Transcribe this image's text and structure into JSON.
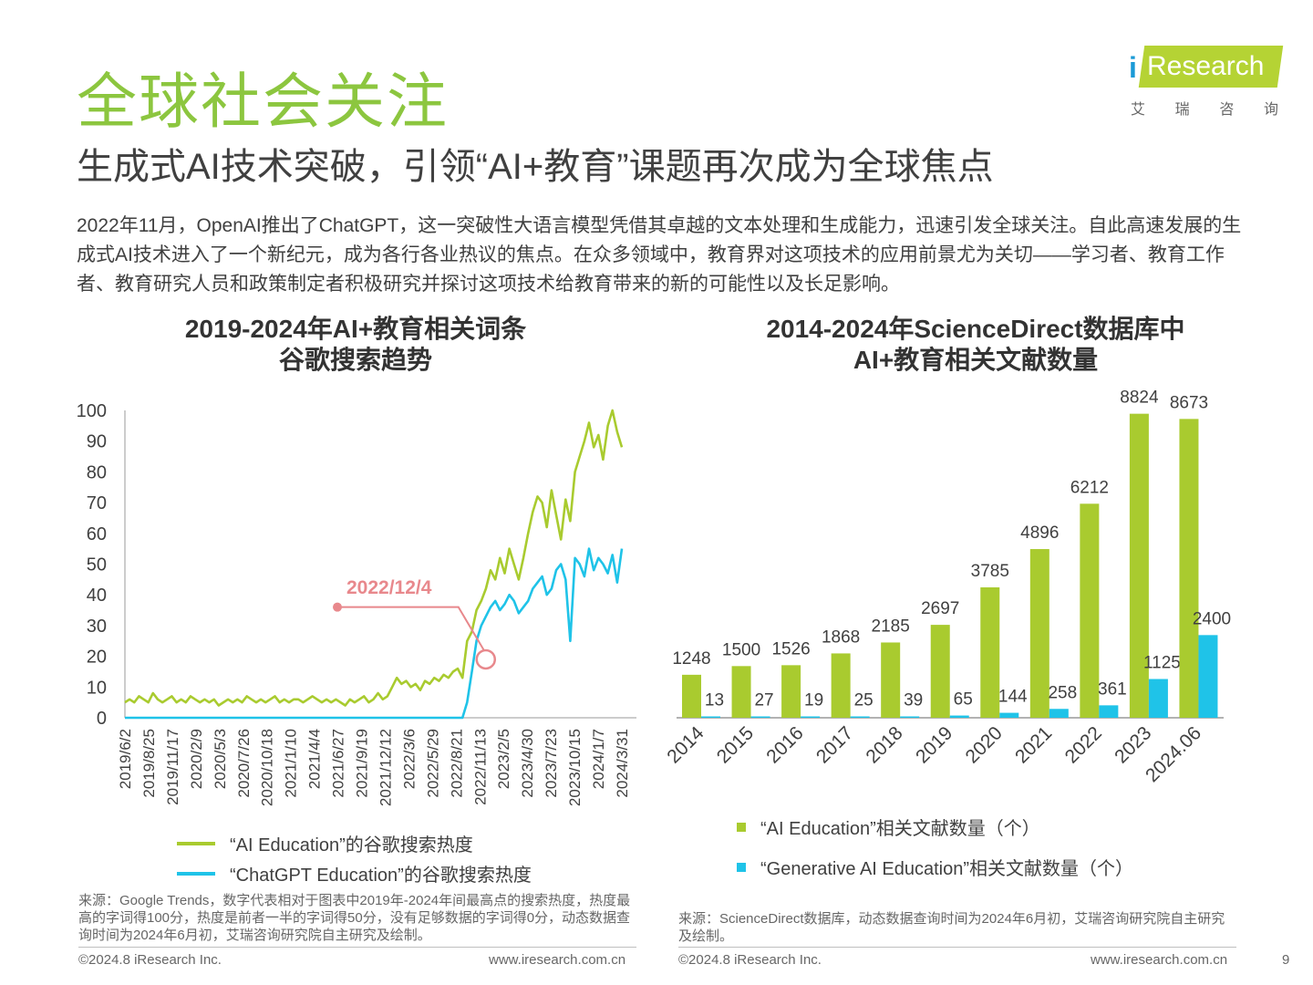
{
  "header": {
    "title": "全球社会关注",
    "subtitle": "生成式AI技术突破，引领“AI+教育”课题再次成为全球焦点",
    "intro": "2022年11月，OpenAI推出了ChatGPT，这一突破性大语言模型凭借其卓越的文本处理和生成能力，迅速引发全球关注。自此高速发展的生成式AI技术进入了一个新纪元，成为各行各业热议的焦点。在众多领域中，教育界对这项技术的应用前景尤为关切——学习者、教育工作者、教育研究人员和政策制定者积极研究并探讨这项技术给教育带来的新的可能性以及长足影响。"
  },
  "logo": {
    "i": "i",
    "text": "Research",
    "cn": [
      "艾",
      "瑞",
      "咨",
      "询"
    ]
  },
  "colors": {
    "green": "#a9cb2f",
    "blue": "#1fc3e8",
    "title_green": "#8cc63f",
    "annotation": "#e8888c"
  },
  "chart_data": [
    {
      "type": "line",
      "title_line1": "2019-2024年AI+教育相关词条",
      "title_line2": "谷歌搜索趋势",
      "ylim": [
        0,
        100
      ],
      "yticks": [
        0,
        10,
        20,
        30,
        40,
        50,
        60,
        70,
        80,
        90,
        100
      ],
      "xticks": [
        "2019/6/2",
        "2019/8/25",
        "2019/11/17",
        "2020/2/9",
        "2020/5/3",
        "2020/7/26",
        "2020/10/18",
        "2021/1/10",
        "2021/4/4",
        "2021/6/27",
        "2021/9/19",
        "2021/12/12",
        "2022/3/6",
        "2022/5/29",
        "2022/8/21",
        "2022/11/13",
        "2023/2/5",
        "2023/4/30",
        "2023/7/23",
        "2023/10/15",
        "2024/1/7",
        "2024/3/31"
      ],
      "annotation": {
        "label": "2022/12/4",
        "x": "2022/12/4",
        "y": 19
      },
      "series": [
        {
          "name": "“AI Education”的谷歌搜索热度",
          "color": "#a9cb2f",
          "values": [
            5,
            6,
            5,
            7,
            6,
            5,
            8,
            6,
            5,
            6,
            7,
            5,
            6,
            5,
            7,
            6,
            5,
            6,
            5,
            6,
            4,
            5,
            6,
            5,
            6,
            5,
            7,
            6,
            5,
            6,
            5,
            6,
            7,
            5,
            6,
            5,
            6,
            6,
            5,
            6,
            7,
            6,
            5,
            6,
            5,
            6,
            5,
            4,
            6,
            5,
            6,
            7,
            5,
            6,
            8,
            6,
            7,
            10,
            13,
            11,
            12,
            10,
            11,
            9,
            12,
            11,
            13,
            12,
            14,
            13,
            15,
            16,
            13,
            25,
            28,
            35,
            38,
            42,
            48,
            45,
            52,
            47,
            55,
            50,
            45,
            52,
            60,
            67,
            72,
            70,
            62,
            74,
            66,
            58,
            71,
            64,
            80,
            85,
            90,
            96,
            88,
            92,
            84,
            95,
            100,
            93,
            88
          ]
        },
        {
          "name": "“ChatGPT Education”的谷歌搜索热度",
          "color": "#1fc3e8",
          "values": [
            0,
            0,
            0,
            0,
            0,
            0,
            0,
            0,
            0,
            0,
            0,
            0,
            0,
            0,
            0,
            0,
            0,
            0,
            0,
            0,
            0,
            0,
            0,
            0,
            0,
            0,
            0,
            0,
            0,
            0,
            0,
            0,
            0,
            0,
            0,
            0,
            0,
            0,
            0,
            0,
            0,
            0,
            0,
            0,
            0,
            0,
            0,
            0,
            0,
            0,
            0,
            0,
            0,
            0,
            0,
            0,
            0,
            0,
            0,
            0,
            0,
            0,
            0,
            0,
            0,
            0,
            0,
            0,
            0,
            0,
            0,
            0,
            0,
            5,
            15,
            25,
            30,
            33,
            36,
            38,
            35,
            37,
            40,
            38,
            34,
            36,
            38,
            42,
            44,
            46,
            40,
            42,
            48,
            50,
            45,
            25,
            52,
            50,
            46,
            55,
            48,
            52,
            50,
            47,
            53,
            44,
            55
          ]
        }
      ],
      "source": "来源：Google Trends，数字代表相对于图表中2019年-2024年间最高点的搜索热度，热度最高的字词得100分，热度是前者一半的字词得50分，没有足够数据的字词得0分，动态数据查询时间为2024年6月初，艾瑞咨询研究院自主研究及绘制。"
    },
    {
      "type": "bar",
      "title_line1": "2014-2024年ScienceDirect数据库中",
      "title_line2": "AI+教育相关文献数量",
      "categories": [
        "2014",
        "2015",
        "2016",
        "2017",
        "2018",
        "2019",
        "2020",
        "2021",
        "2022",
        "2023",
        "2024.06"
      ],
      "series": [
        {
          "name": "“AI Education”相关文献数量（个）",
          "color": "#a9cb2f",
          "values": [
            1248,
            1500,
            1526,
            1868,
            2185,
            2697,
            3785,
            4896,
            6212,
            8824,
            8673
          ]
        },
        {
          "name": "“Generative AI Education”相关文献数量（个）",
          "color": "#1fc3e8",
          "values": [
            13,
            27,
            19,
            25,
            39,
            65,
            144,
            258,
            361,
            1125,
            2400
          ]
        }
      ],
      "source": "来源：ScienceDirect数据库，动态数据查询时间为2024年6月初，艾瑞咨询研究院自主研究及绘制。"
    }
  ],
  "footer": {
    "copyright": "©2024.8 iResearch Inc.",
    "url": "www.iresearch.com.cn",
    "page": "9"
  }
}
